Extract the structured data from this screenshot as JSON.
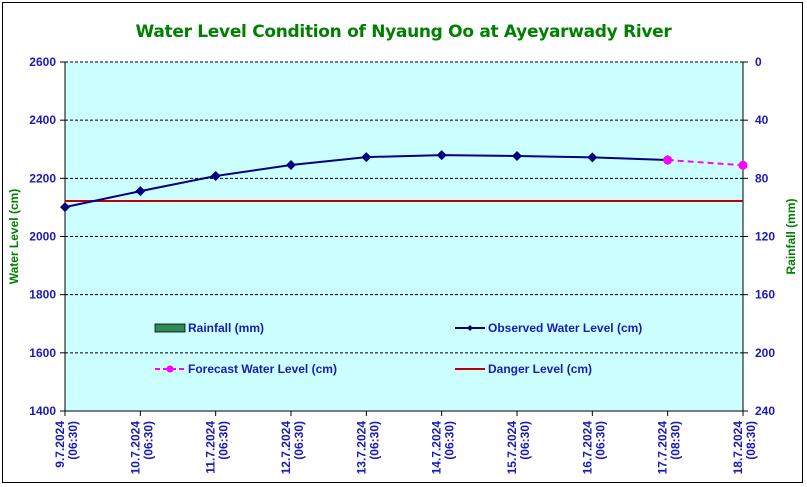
{
  "chart_data": {
    "type": "line",
    "title": "Water Level Condition of Nyaung Oo at Ayeyarwady River",
    "xlabel": "",
    "ylabel": "Water Level (cm)",
    "y2label": "Rainfall (mm)",
    "ylim": [
      1400,
      2600
    ],
    "y2lim": [
      0,
      240
    ],
    "y2_inverted": true,
    "yticks": [
      1400,
      1600,
      1800,
      2000,
      2200,
      2400,
      2600
    ],
    "y2ticks": [
      0,
      40,
      80,
      120,
      160,
      200,
      240
    ],
    "grid": true,
    "categories": [
      [
        "9.7.2024",
        "(06:30)"
      ],
      [
        "10.7.2024",
        "(06:30)"
      ],
      [
        "11.7.2024",
        "(06:30)"
      ],
      [
        "12.7.2024",
        "(06:30)"
      ],
      [
        "13.7.2024",
        "(06:30)"
      ],
      [
        "14.7.2024",
        "(06:30)"
      ],
      [
        "15.7.2024",
        "(06:30)"
      ],
      [
        "16.7.2024",
        "(06:30)"
      ],
      [
        "17.7.2024",
        "(08:30)"
      ],
      [
        "18.7.2024",
        "(08:30)"
      ]
    ],
    "series": [
      {
        "name": "Rainfall (mm)",
        "kind": "bar",
        "color": "#2e8b57",
        "values": [
          0,
          0,
          0,
          0,
          0,
          0,
          0,
          0,
          0,
          0
        ]
      },
      {
        "name": "Observed Water Level (cm)",
        "kind": "line",
        "color": "#000080",
        "marker": "diamond",
        "values": [
          2101,
          2156,
          2208,
          2246,
          2273,
          2280,
          2277,
          2272,
          2263,
          null
        ]
      },
      {
        "name": "Forecast Water Level (cm)",
        "kind": "dashed-line",
        "color": "#ff00ff",
        "marker": "circle",
        "values": [
          null,
          null,
          null,
          null,
          null,
          null,
          null,
          null,
          2263,
          2245
        ]
      },
      {
        "name": "Danger Level (cm)",
        "kind": "hline",
        "color": "#c00000",
        "value": 2122
      }
    ],
    "legend_position": "inside-bottom"
  },
  "colors": {
    "plot_background": "#ccffff",
    "title": "#008000",
    "tick_text": "#1a1ab8"
  }
}
